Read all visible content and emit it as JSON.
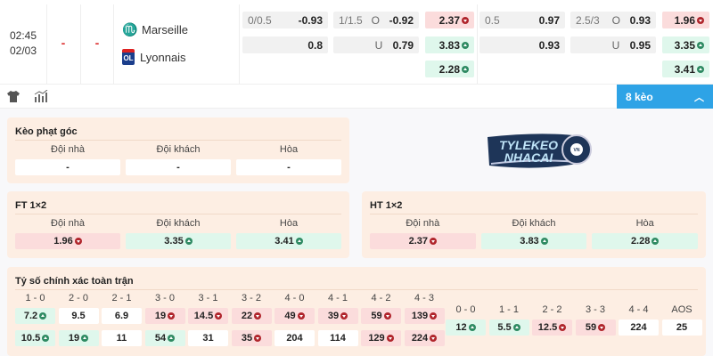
{
  "match": {
    "time": "02:45",
    "date": "02/03",
    "score_home": "-",
    "score_away": "-",
    "home": "Marseille",
    "away": "Lyonnais"
  },
  "odds_rows": [
    [
      {
        "label": "0/0.5",
        "mid": "",
        "val": "-0.93",
        "kind": "g"
      },
      {
        "label": "1/1.5",
        "mid": "O",
        "val": "-0.92",
        "kind": "g"
      },
      {
        "label": "",
        "mid": "",
        "val": "2.37",
        "kind": "r",
        "trend": "down"
      },
      {
        "label": "0.5",
        "mid": "",
        "val": "0.97",
        "kind": "g"
      },
      {
        "label": "2.5/3",
        "mid": "O",
        "val": "0.93",
        "kind": "g"
      },
      {
        "label": "",
        "mid": "",
        "val": "1.96",
        "kind": "r",
        "trend": "down"
      }
    ],
    [
      {
        "label": "",
        "mid": "",
        "val": "0.8",
        "kind": "g"
      },
      {
        "label": "",
        "mid": "U",
        "val": "0.79",
        "kind": "g"
      },
      {
        "label": "",
        "mid": "",
        "val": "3.83",
        "kind": "gr",
        "trend": "up"
      },
      {
        "label": "",
        "mid": "",
        "val": "0.93",
        "kind": "g"
      },
      {
        "label": "",
        "mid": "U",
        "val": "0.95",
        "kind": "g"
      },
      {
        "label": "",
        "mid": "",
        "val": "3.35",
        "kind": "gr",
        "trend": "up"
      }
    ],
    [
      null,
      null,
      {
        "label": "",
        "mid": "",
        "val": "2.28",
        "kind": "gr",
        "trend": "up"
      },
      null,
      null,
      {
        "label": "",
        "mid": "",
        "val": "3.41",
        "kind": "gr",
        "trend": "up"
      }
    ]
  ],
  "toolbar": {
    "more_label": "8 kèo",
    "icons": [
      "jersey-icon",
      "stats-icon"
    ]
  },
  "brand_logo": "TYLEKEO NHACAI VN",
  "corner": {
    "title": "Kèo phạt góc",
    "headers": [
      "Đội nhà",
      "Đội khách",
      "Hòa"
    ],
    "values": [
      {
        "v": "-",
        "k": "w"
      },
      {
        "v": "-",
        "k": "w"
      },
      {
        "v": "-",
        "k": "w"
      }
    ]
  },
  "ft": {
    "title": "FT 1×2",
    "headers": [
      "Đội nhà",
      "Đội khách",
      "Hòa"
    ],
    "values": [
      {
        "v": "1.96",
        "k": "r",
        "t": "down"
      },
      {
        "v": "3.35",
        "k": "gr",
        "t": "up"
      },
      {
        "v": "3.41",
        "k": "gr",
        "t": "up"
      }
    ]
  },
  "ht": {
    "title": "HT 1×2",
    "headers": [
      "Đội nhà",
      "Đội khách",
      "Hòa"
    ],
    "values": [
      {
        "v": "2.37",
        "k": "r",
        "t": "down"
      },
      {
        "v": "3.83",
        "k": "gr",
        "t": "up"
      },
      {
        "v": "2.28",
        "k": "gr",
        "t": "up"
      }
    ]
  },
  "correct_score": {
    "title": "Tỷ số chính xác toàn trận",
    "home_headers": [
      "1 - 0",
      "2 - 0",
      "2 - 1",
      "3 - 0",
      "3 - 1",
      "3 - 2",
      "4 - 0",
      "4 - 1",
      "4 - 2",
      "4 - 3"
    ],
    "home_row": [
      {
        "v": "7.2",
        "k": "gr",
        "t": "up"
      },
      {
        "v": "9.5",
        "k": "w"
      },
      {
        "v": "6.9",
        "k": "w"
      },
      {
        "v": "19",
        "k": "r",
        "t": "down"
      },
      {
        "v": "14.5",
        "k": "r",
        "t": "down"
      },
      {
        "v": "22",
        "k": "r",
        "t": "down"
      },
      {
        "v": "49",
        "k": "r",
        "t": "down"
      },
      {
        "v": "39",
        "k": "r",
        "t": "down"
      },
      {
        "v": "59",
        "k": "r",
        "t": "down"
      },
      {
        "v": "139",
        "k": "r",
        "t": "down"
      }
    ],
    "away_row": [
      {
        "v": "10.5",
        "k": "gr",
        "t": "up"
      },
      {
        "v": "19",
        "k": "gr",
        "t": "up"
      },
      {
        "v": "11",
        "k": "w"
      },
      {
        "v": "54",
        "k": "gr",
        "t": "up"
      },
      {
        "v": "31",
        "k": "w"
      },
      {
        "v": "35",
        "k": "r",
        "t": "down"
      },
      {
        "v": "204",
        "k": "w"
      },
      {
        "v": "114",
        "k": "w"
      },
      {
        "v": "129",
        "k": "r",
        "t": "down"
      },
      {
        "v": "224",
        "k": "r",
        "t": "down"
      }
    ],
    "draw_headers": [
      "0 - 0",
      "1 - 1",
      "2 - 2",
      "3 - 3",
      "4 - 4",
      "AOS"
    ],
    "draw_row": [
      {
        "v": "12",
        "k": "gr",
        "t": "up"
      },
      {
        "v": "5.5",
        "k": "gr",
        "t": "up"
      },
      {
        "v": "12.5",
        "k": "r",
        "t": "down"
      },
      {
        "v": "59",
        "k": "r",
        "t": "down"
      },
      {
        "v": "224",
        "k": "w"
      },
      {
        "v": "25",
        "k": "w"
      }
    ]
  },
  "colors": {
    "accent": "#2ea3e6",
    "panel": "#fdeee3",
    "up": "#2e8a62",
    "down": "#b0252c"
  }
}
